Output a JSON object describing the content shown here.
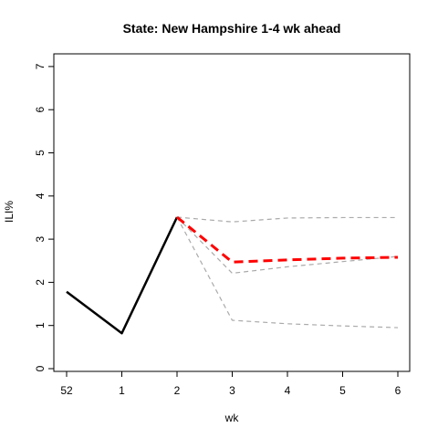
{
  "chart_data": {
    "type": "line",
    "title": "State: New Hampshire 1-4 wk ahead",
    "xlabel": "wk",
    "ylabel": "ILI%",
    "categories": [
      "52",
      "1",
      "2",
      "3",
      "4",
      "5",
      "6"
    ],
    "ylim": [
      0,
      7
    ],
    "yticks": [
      "0",
      "1",
      "2",
      "3",
      "4",
      "5",
      "6",
      "7"
    ],
    "grid": false,
    "legend": "none",
    "series": [
      {
        "role": "observed",
        "color": "#000000",
        "style": "solid",
        "values": [
          1.78,
          0.82,
          3.51,
          null,
          null,
          null,
          null
        ]
      },
      {
        "role": "forecast-upper",
        "color": "#aaaaaa",
        "style": "dashed",
        "values": [
          null,
          null,
          3.51,
          3.4,
          3.49,
          3.5,
          3.5
        ]
      },
      {
        "role": "forecast-mid",
        "color": "#aaaaaa",
        "style": "dashed",
        "values": [
          null,
          null,
          3.51,
          2.21,
          2.36,
          2.48,
          2.6
        ]
      },
      {
        "role": "forecast-lower",
        "color": "#aaaaaa",
        "style": "dashed",
        "values": [
          null,
          null,
          3.51,
          1.12,
          1.04,
          0.99,
          0.95
        ]
      },
      {
        "role": "forecast-point",
        "color": "#ff0000",
        "style": "dashed",
        "values": [
          null,
          null,
          3.51,
          2.47,
          2.52,
          2.56,
          2.58
        ]
      }
    ]
  }
}
